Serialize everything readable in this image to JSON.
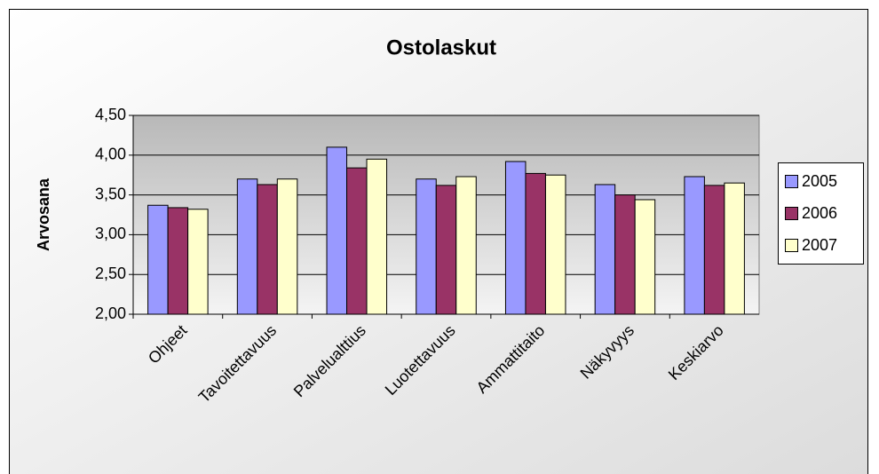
{
  "chart_data": {
    "type": "bar",
    "title": "Ostolaskut",
    "y_label": "Arvosana",
    "categories": [
      "Ohjeet",
      "Tavoitettavuus",
      "Palvelualttius",
      "Luotettavuus",
      "Ammattitaito",
      "Näkyvyys",
      "Keskiarvo"
    ],
    "series": [
      {
        "name": "2005",
        "color": "#9999ff",
        "values": [
          3.37,
          3.7,
          4.1,
          3.7,
          3.92,
          3.63,
          3.73
        ]
      },
      {
        "name": "2006",
        "color": "#993366",
        "values": [
          3.34,
          3.63,
          3.84,
          3.62,
          3.77,
          3.5,
          3.62
        ]
      },
      {
        "name": "2007",
        "color": "#ffffcc",
        "values": [
          3.32,
          3.7,
          3.95,
          3.73,
          3.75,
          3.44,
          3.65
        ]
      }
    ],
    "ylim": [
      2,
      4.5
    ],
    "yticks": [
      {
        "value": 2,
        "label": "2,00"
      },
      {
        "value": 2.5,
        "label": "2,50"
      },
      {
        "value": 3,
        "label": "3,00"
      },
      {
        "value": 3.5,
        "label": "3,50"
      },
      {
        "value": 4,
        "label": "4,00"
      },
      {
        "value": 4.5,
        "label": "4,50"
      }
    ],
    "grid": true,
    "legend": "right"
  }
}
